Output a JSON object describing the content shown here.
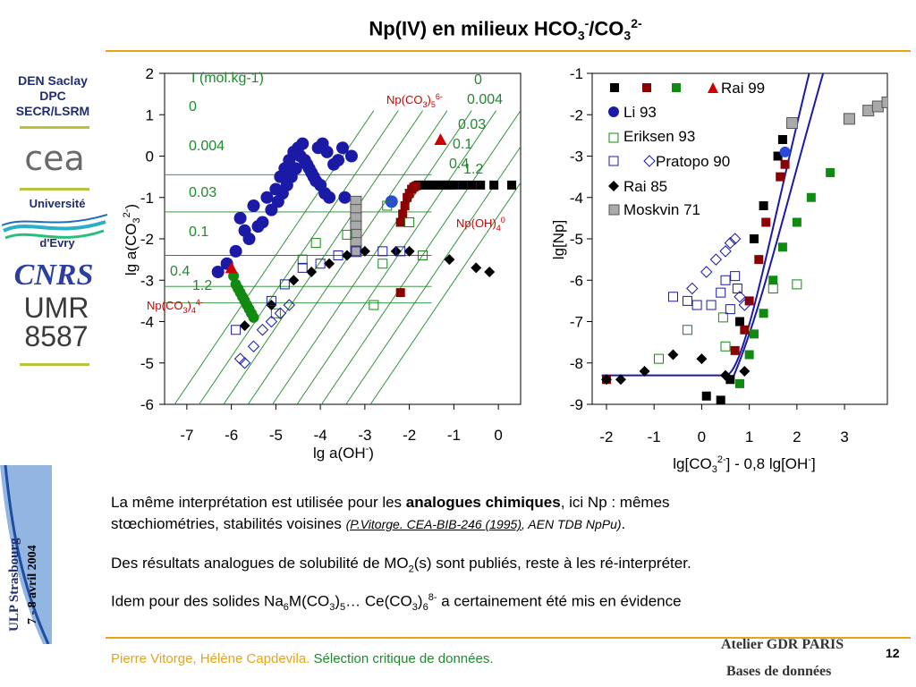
{
  "slide": {
    "title_main": "Np(IV) en milieux HCO",
    "title_sub1": "3",
    "title_sup1": "-",
    "title_mid": "/CO",
    "title_sub2": "3",
    "title_sup2": "2-",
    "page_number": "12"
  },
  "sidebar": {
    "org_line1": "DEN Saclay",
    "org_line2": "DPC",
    "org_line3": "SECR/LSRM",
    "cea_logo_text": "cea",
    "univ_line1": "Université",
    "univ_line2": "d'Evry",
    "cnrs_logo_text": "CNRS",
    "umr_line1": "UMR",
    "umr_line2": "8587",
    "vertical_line1": "ULP Strasbourg",
    "vertical_line2": "7 - 8 avril 2004"
  },
  "body": {
    "p1_a": "La même interprétation est utilisée pour les ",
    "p1_bold": "analogues chimiques",
    "p1_b": ", ici Np : mêmes",
    "p1_c": "stœchiométries, stabilités voisines ",
    "p1_ref": "(P.Vitorge. CEA-BIB-246 (1995)",
    "p1_ref2": ", AEN TDB NpPu)",
    "p1_end": ".",
    "p2_a": "Des résultats analogues de solubilité de MO",
    "p2_sub": "2",
    "p2_b": "(s) sont publiés, reste à les ré-interpréter.",
    "p3_a": "Idem pour des solides Na",
    "p3_sub1": "6",
    "p3_b": "M(CO",
    "p3_sub2": "3",
    "p3_c": ")",
    "p3_sub3": "5",
    "p3_d": "… Ce(CO",
    "p3_sub4": "3",
    "p3_e": ")",
    "p3_sub5": "6",
    "p3_sup": "8-",
    "p3_f": " a certainement été mis en évidence"
  },
  "footer": {
    "authors": "Pierre Vitorge, Hélène Capdevila.",
    "subject": " Sélection critique de données.",
    "atelier_line1": "Atelier GDR PARIS",
    "atelier_line2": "Bases de données"
  },
  "colors": {
    "accent_gold": "#e5a41c",
    "navy": "#1f2d6e",
    "green_text": "#1e8a2e",
    "red": "#cc0000",
    "dark_red": "#8b0000",
    "green_series": "#108a10",
    "blue_series": "#1a1aa6",
    "gray": "#aaaaaa"
  },
  "chart_data": [
    {
      "type": "scatter",
      "xlabel": "lg a(OH-)",
      "ylabel": "lg a(CO3 2-)",
      "xlim": [
        -7.5,
        0.5
      ],
      "ylim": [
        -6,
        2
      ],
      "xticks": [
        -7,
        -6,
        -5,
        -4,
        -3,
        -2,
        -1,
        0
      ],
      "yticks": [
        2,
        1,
        0,
        -1,
        -2,
        -3,
        -4,
        -5,
        -6
      ],
      "legend_title": "I (mol.kg-1)",
      "ionic_strength_labels": [
        "0",
        "0.004",
        "0.03",
        "0.1",
        "0.4",
        "1.2"
      ],
      "ionic_strength_labels_top": [
        "0",
        "0.004",
        "0.03",
        "0.1",
        "0.4",
        "1.2"
      ],
      "species_labels": [
        "Np(CO3)5 6-",
        "Np(OH)4 0",
        "Np(CO3)4 4-"
      ],
      "series": [
        {
          "name": "blue circles",
          "x": [
            -5.8,
            -5.5,
            -5.2,
            -5.0,
            -4.9,
            -4.8,
            -4.7,
            -4.6,
            -4.5,
            -4.4,
            -4.3,
            -4.2,
            -4.1,
            -4.0,
            -3.9,
            -3.8,
            -3.7,
            -3.5,
            -3.3,
            -5.6,
            -5.3,
            -5.1,
            -4.95,
            -4.85,
            -4.75,
            -4.65,
            -4.55,
            -4.45,
            -4.35,
            -4.25,
            -4.15,
            -4.05,
            -3.95,
            -3.85,
            -5.9,
            -6.1,
            -6.3,
            -5.7,
            -5.4,
            -3.6,
            -3.45
          ],
          "y": [
            -1.5,
            -1.2,
            -1.0,
            -0.8,
            -0.5,
            -0.3,
            -0.1,
            0.1,
            0.2,
            0.3,
            -0.2,
            -0.4,
            -0.6,
            -0.7,
            -0.9,
            -1.0,
            -0.2,
            0.2,
            0.0,
            -2.0,
            -1.6,
            -1.3,
            -1.1,
            -0.9,
            -0.7,
            -0.5,
            -0.3,
            0.0,
            -0.1,
            -0.3,
            -0.5,
            0.2,
            0.3,
            0.1,
            -2.3,
            -2.6,
            -2.8,
            -1.8,
            -1.7,
            -0.1,
            -1.0
          ]
        },
        {
          "name": "Li 93",
          "x": [
            -2.4
          ],
          "y": [
            -1.1
          ]
        },
        {
          "name": "Rai 99",
          "x": [
            -1.8,
            -1.7,
            -1.6,
            -1.5,
            -1.4,
            -1.3,
            -1.2,
            -1.1,
            -1.0,
            -0.8,
            -0.6,
            -0.4,
            -0.1,
            0.3,
            -2.2,
            -2.15,
            -2.1,
            -2.05,
            -2.0,
            -1.95,
            -1.9,
            -1.85,
            -2.2
          ],
          "y": [
            -0.7,
            -0.7,
            -0.7,
            -0.7,
            -0.7,
            -0.7,
            -0.7,
            -0.7,
            -0.7,
            -0.7,
            -0.7,
            -0.7,
            -0.7,
            -0.7,
            -1.6,
            -1.4,
            -1.2,
            -1.0,
            -0.9,
            -0.8,
            -0.75,
            -0.72,
            -3.3
          ]
        },
        {
          "name": "green",
          "x": [
            -5.95,
            -5.9,
            -5.85,
            -5.8,
            -5.75,
            -5.7,
            -5.65,
            -5.6,
            -5.55,
            -5.5
          ],
          "y": [
            -2.9,
            -3.1,
            -3.2,
            -3.3,
            -3.4,
            -3.5,
            -3.6,
            -3.7,
            -3.8,
            -3.9
          ]
        },
        {
          "name": "gray squares",
          "x": [
            -3.2,
            -3.2,
            -3.2,
            -3.2,
            -3.2,
            -3.2,
            -3.2
          ],
          "y": [
            -1.1,
            -1.3,
            -1.5,
            -1.7,
            -1.9,
            -2.1,
            -2.3
          ]
        },
        {
          "name": "Eriksen 93",
          "x": [
            -2.5,
            -2.0,
            -1.7,
            -2.6,
            -2.8,
            -3.4,
            -4.1,
            -4.4,
            -5.0
          ],
          "y": [
            -1.2,
            -1.6,
            -2.4,
            -2.6,
            -3.6,
            -1.9,
            -2.1,
            -2.5,
            -3.8
          ]
        },
        {
          "name": "Pratopo 90",
          "x": [
            -5.7,
            -5.5,
            -5.3,
            -5.1,
            -4.9,
            -4.7,
            -5.8
          ],
          "y": [
            -5.0,
            -4.6,
            -4.2,
            -4.0,
            -3.8,
            -3.6,
            -4.9
          ]
        },
        {
          "name": "Rai 85",
          "x": [
            -5.7,
            -5.1,
            -4.6,
            -4.2,
            -3.8,
            -3.4,
            -3.0,
            -2.3,
            -2.0,
            -1.1,
            -0.5,
            -0.2
          ],
          "y": [
            -4.1,
            -3.6,
            -3.0,
            -2.8,
            -2.6,
            -2.4,
            -2.3,
            -2.3,
            -2.3,
            -2.5,
            -2.7,
            -2.8
          ]
        },
        {
          "name": "Rai 99 triangles",
          "x": [
            -6.0,
            -1.3
          ],
          "y": [
            -2.7,
            0.4
          ]
        }
      ]
    },
    {
      "type": "scatter",
      "xlabel": "lg[CO3 2-] - 0,8 lg[OH-]",
      "ylabel": "lg[Np]",
      "xlim": [
        -2.3,
        3.9
      ],
      "ylim": [
        -9,
        -1
      ],
      "xticks": [
        -2,
        -1,
        0,
        1,
        2,
        3
      ],
      "yticks": [
        -1,
        -2,
        -3,
        -4,
        -5,
        -6,
        -7,
        -8,
        -9
      ],
      "legend": [
        "Rai 99",
        "Li 93",
        "Eriksen 93",
        "Pratopo 90",
        "Rai 85",
        "Moskvin 71"
      ],
      "series": [
        {
          "name": "Rai 99 black",
          "x": [
            0.1,
            0.4,
            0.6,
            0.8,
            1.1,
            1.3,
            1.6,
            1.7
          ],
          "y": [
            -8.8,
            -8.9,
            -8.4,
            -7.0,
            -5.0,
            -4.2,
            -3.0,
            -2.6
          ]
        },
        {
          "name": "Rai 99 red",
          "x": [
            -2.0,
            0.7,
            0.9,
            1.0,
            1.2,
            1.35,
            1.65,
            1.75
          ],
          "y": [
            -8.4,
            -7.7,
            -7.2,
            -6.5,
            -5.5,
            -4.6,
            -3.5,
            -3.2
          ]
        },
        {
          "name": "Rai 99 green",
          "x": [
            0.8,
            1.0,
            1.1,
            1.3,
            1.5,
            1.7,
            2.0,
            2.3,
            2.7
          ],
          "y": [
            -8.5,
            -7.8,
            -7.3,
            -6.8,
            -6.0,
            -5.2,
            -4.6,
            -4.0,
            -3.4
          ]
        },
        {
          "name": "Li 93",
          "x": [
            1.75
          ],
          "y": [
            -2.9
          ]
        },
        {
          "name": "Eriksen 93",
          "x": [
            -0.9,
            -0.3,
            0.5,
            0.45,
            1.5,
            2.0
          ],
          "y": [
            -7.9,
            -7.2,
            -7.6,
            -6.9,
            -6.2,
            -6.1
          ]
        },
        {
          "name": "Pratopo 90",
          "x": [
            -0.2,
            0.1,
            0.3,
            0.5,
            0.7,
            0.8,
            0.9,
            0.6
          ],
          "y": [
            -6.2,
            -5.8,
            -5.5,
            -5.3,
            -5.0,
            -6.4,
            -6.6,
            -5.1
          ]
        },
        {
          "name": "Rai 85",
          "x": [
            -2.0,
            -1.7,
            -1.2,
            -0.6,
            0.0,
            0.5,
            0.9
          ],
          "y": [
            -8.4,
            -8.4,
            -8.2,
            -7.8,
            -7.9,
            -8.3,
            -8.2
          ]
        },
        {
          "name": "Moskvin 71",
          "x": [
            1.9,
            3.1,
            3.5,
            3.7,
            3.9
          ],
          "y": [
            -2.2,
            -2.1,
            -1.9,
            -1.8,
            -1.7
          ]
        }
      ]
    }
  ]
}
